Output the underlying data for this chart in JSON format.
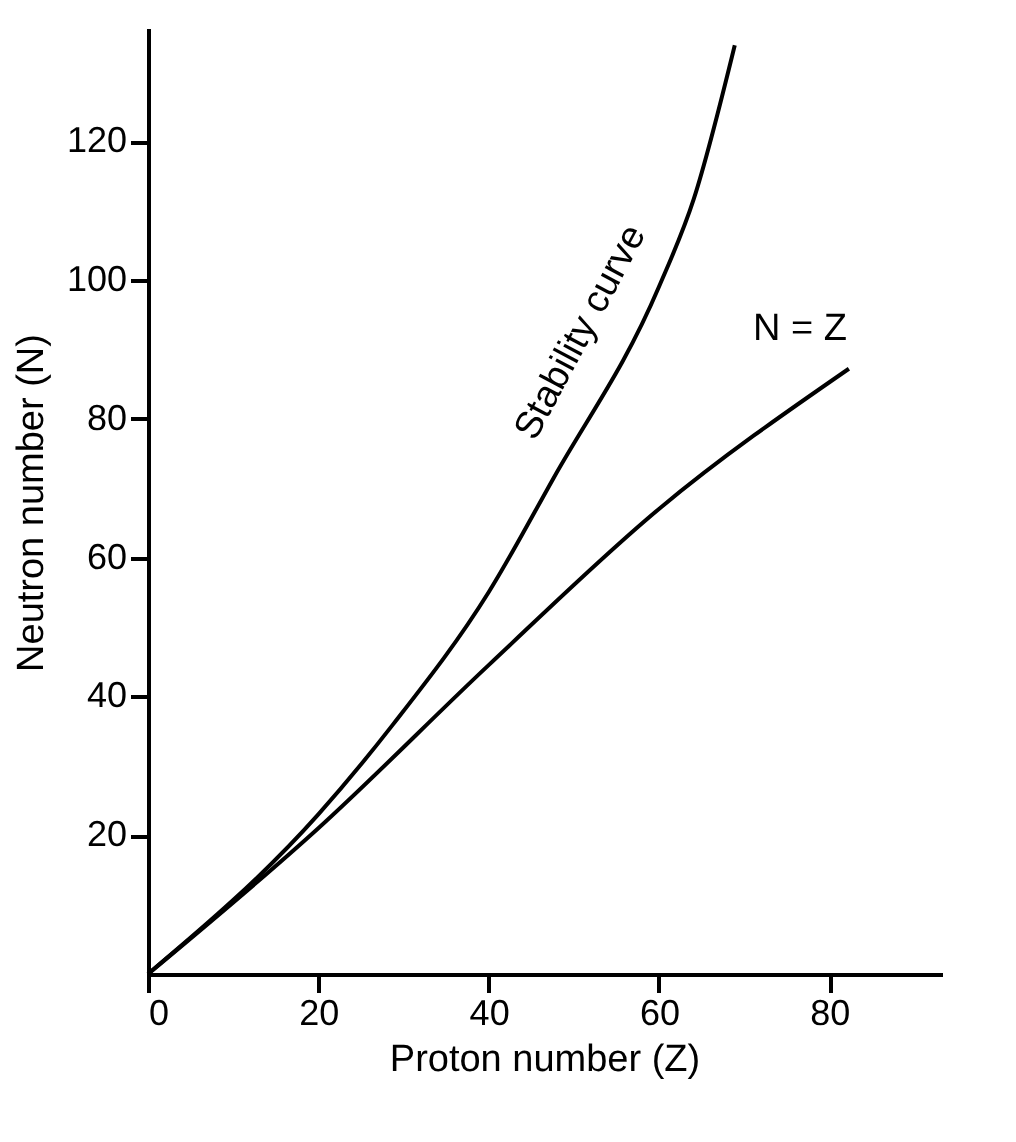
{
  "chart_data": {
    "type": "line",
    "xlabel": "Proton number (Z)",
    "ylabel": "Neutron number (N)",
    "xlim": [
      0,
      93
    ],
    "ylim": [
      0,
      136
    ],
    "xticks": [
      0,
      20,
      40,
      60,
      80
    ],
    "yticks": [
      20,
      40,
      60,
      80,
      100,
      120
    ],
    "grid": false,
    "legend": false,
    "marker": "none",
    "line_style": "solid",
    "series": [
      {
        "color": "#000000",
        "x": [
          0,
          20,
          28.8,
          40,
          47.6,
          60,
          64.1,
          68.9
        ],
        "values": [
          0,
          23,
          36,
          55,
          71.4,
          99,
          111.7,
          133.8
        ]
      },
      {
        "color": "#000000",
        "x": [
          0,
          20,
          40,
          60,
          82.3
        ],
        "values": [
          0,
          21,
          44.5,
          67,
          87.2
        ]
      }
    ],
    "annotations": [
      "Stability curve",
      "N = Z"
    ]
  }
}
